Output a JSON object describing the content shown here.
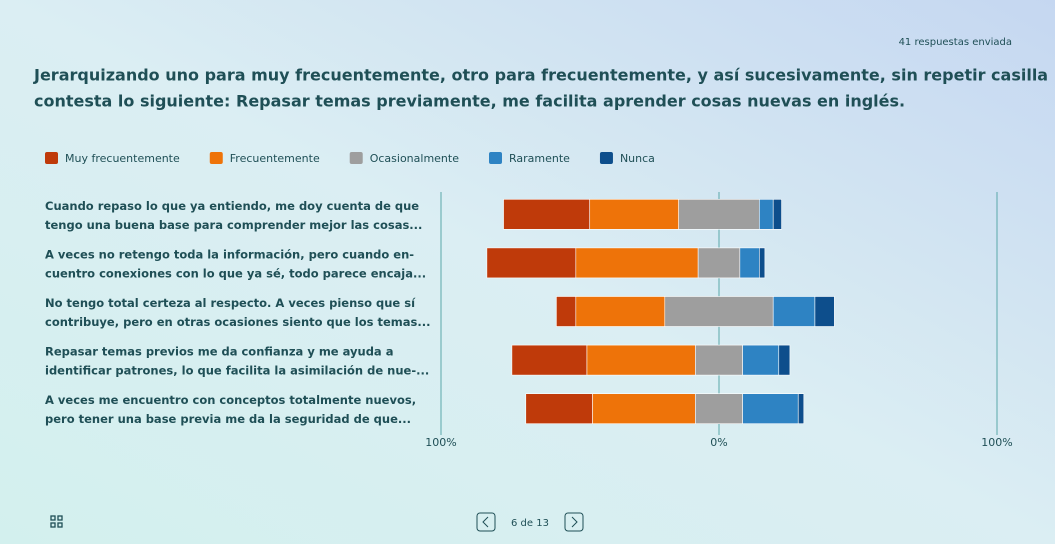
{
  "chart_data": {
    "type": "diverging-bar",
    "responses": "41 respuestas enviada",
    "title": [
      "Jerarquizando uno para muy frecuentemente, otro para frecuentemente, y así sucesivamente, sin repetir casilla",
      "contesta lo siguiente: Repasar temas previamente, me facilita aprender cosas nuevas en inglés."
    ],
    "categories": [
      [
        "Cuando repaso lo que ya entiendo, me doy cuenta de que",
        "tengo una buena base para comprender mejor las cosas..."
      ],
      [
        "A veces no retengo toda la información, pero cuando en-",
        "cuentro conexiones con lo que ya sé, todo parece encaja..."
      ],
      [
        "No tengo total certeza al respecto. A veces pienso que sí",
        "contribuye, pero en otras ocasiones siento que los temas..."
      ],
      [
        "Repasar temas previos me da confianza y me ayuda a",
        "identificar patrones, lo que facilita la asimilación de nue-..."
      ],
      [
        "A veces me encuentro con conceptos totalmente nuevos,",
        "pero tener una base previa me da la seguridad de que..."
      ]
    ],
    "series": [
      {
        "name": "Muy frecuentemente",
        "color": "#bf3a0a",
        "values": [
          31,
          32,
          7,
          27,
          24
        ]
      },
      {
        "name": "Frecuentemente",
        "color": "#ee7309",
        "values": [
          32,
          44,
          32,
          39,
          37
        ]
      },
      {
        "name": "Ocasionalmente",
        "color": "#9e9e9e",
        "values": [
          29,
          15,
          39,
          17,
          17
        ]
      },
      {
        "name": "Raramente",
        "color": "#2e83c3",
        "values": [
          5,
          7,
          15,
          13,
          20
        ]
      },
      {
        "name": "Nunca",
        "color": "#0d4e8c",
        "values": [
          3,
          2,
          7,
          4,
          2
        ]
      }
    ],
    "xlim": [
      -100,
      100
    ],
    "xticks": [
      {
        "value": -100,
        "label": "100%"
      },
      {
        "value": 0,
        "label": "0%"
      },
      {
        "value": 100,
        "label": "100%"
      }
    ],
    "pager": "6 de 13"
  }
}
